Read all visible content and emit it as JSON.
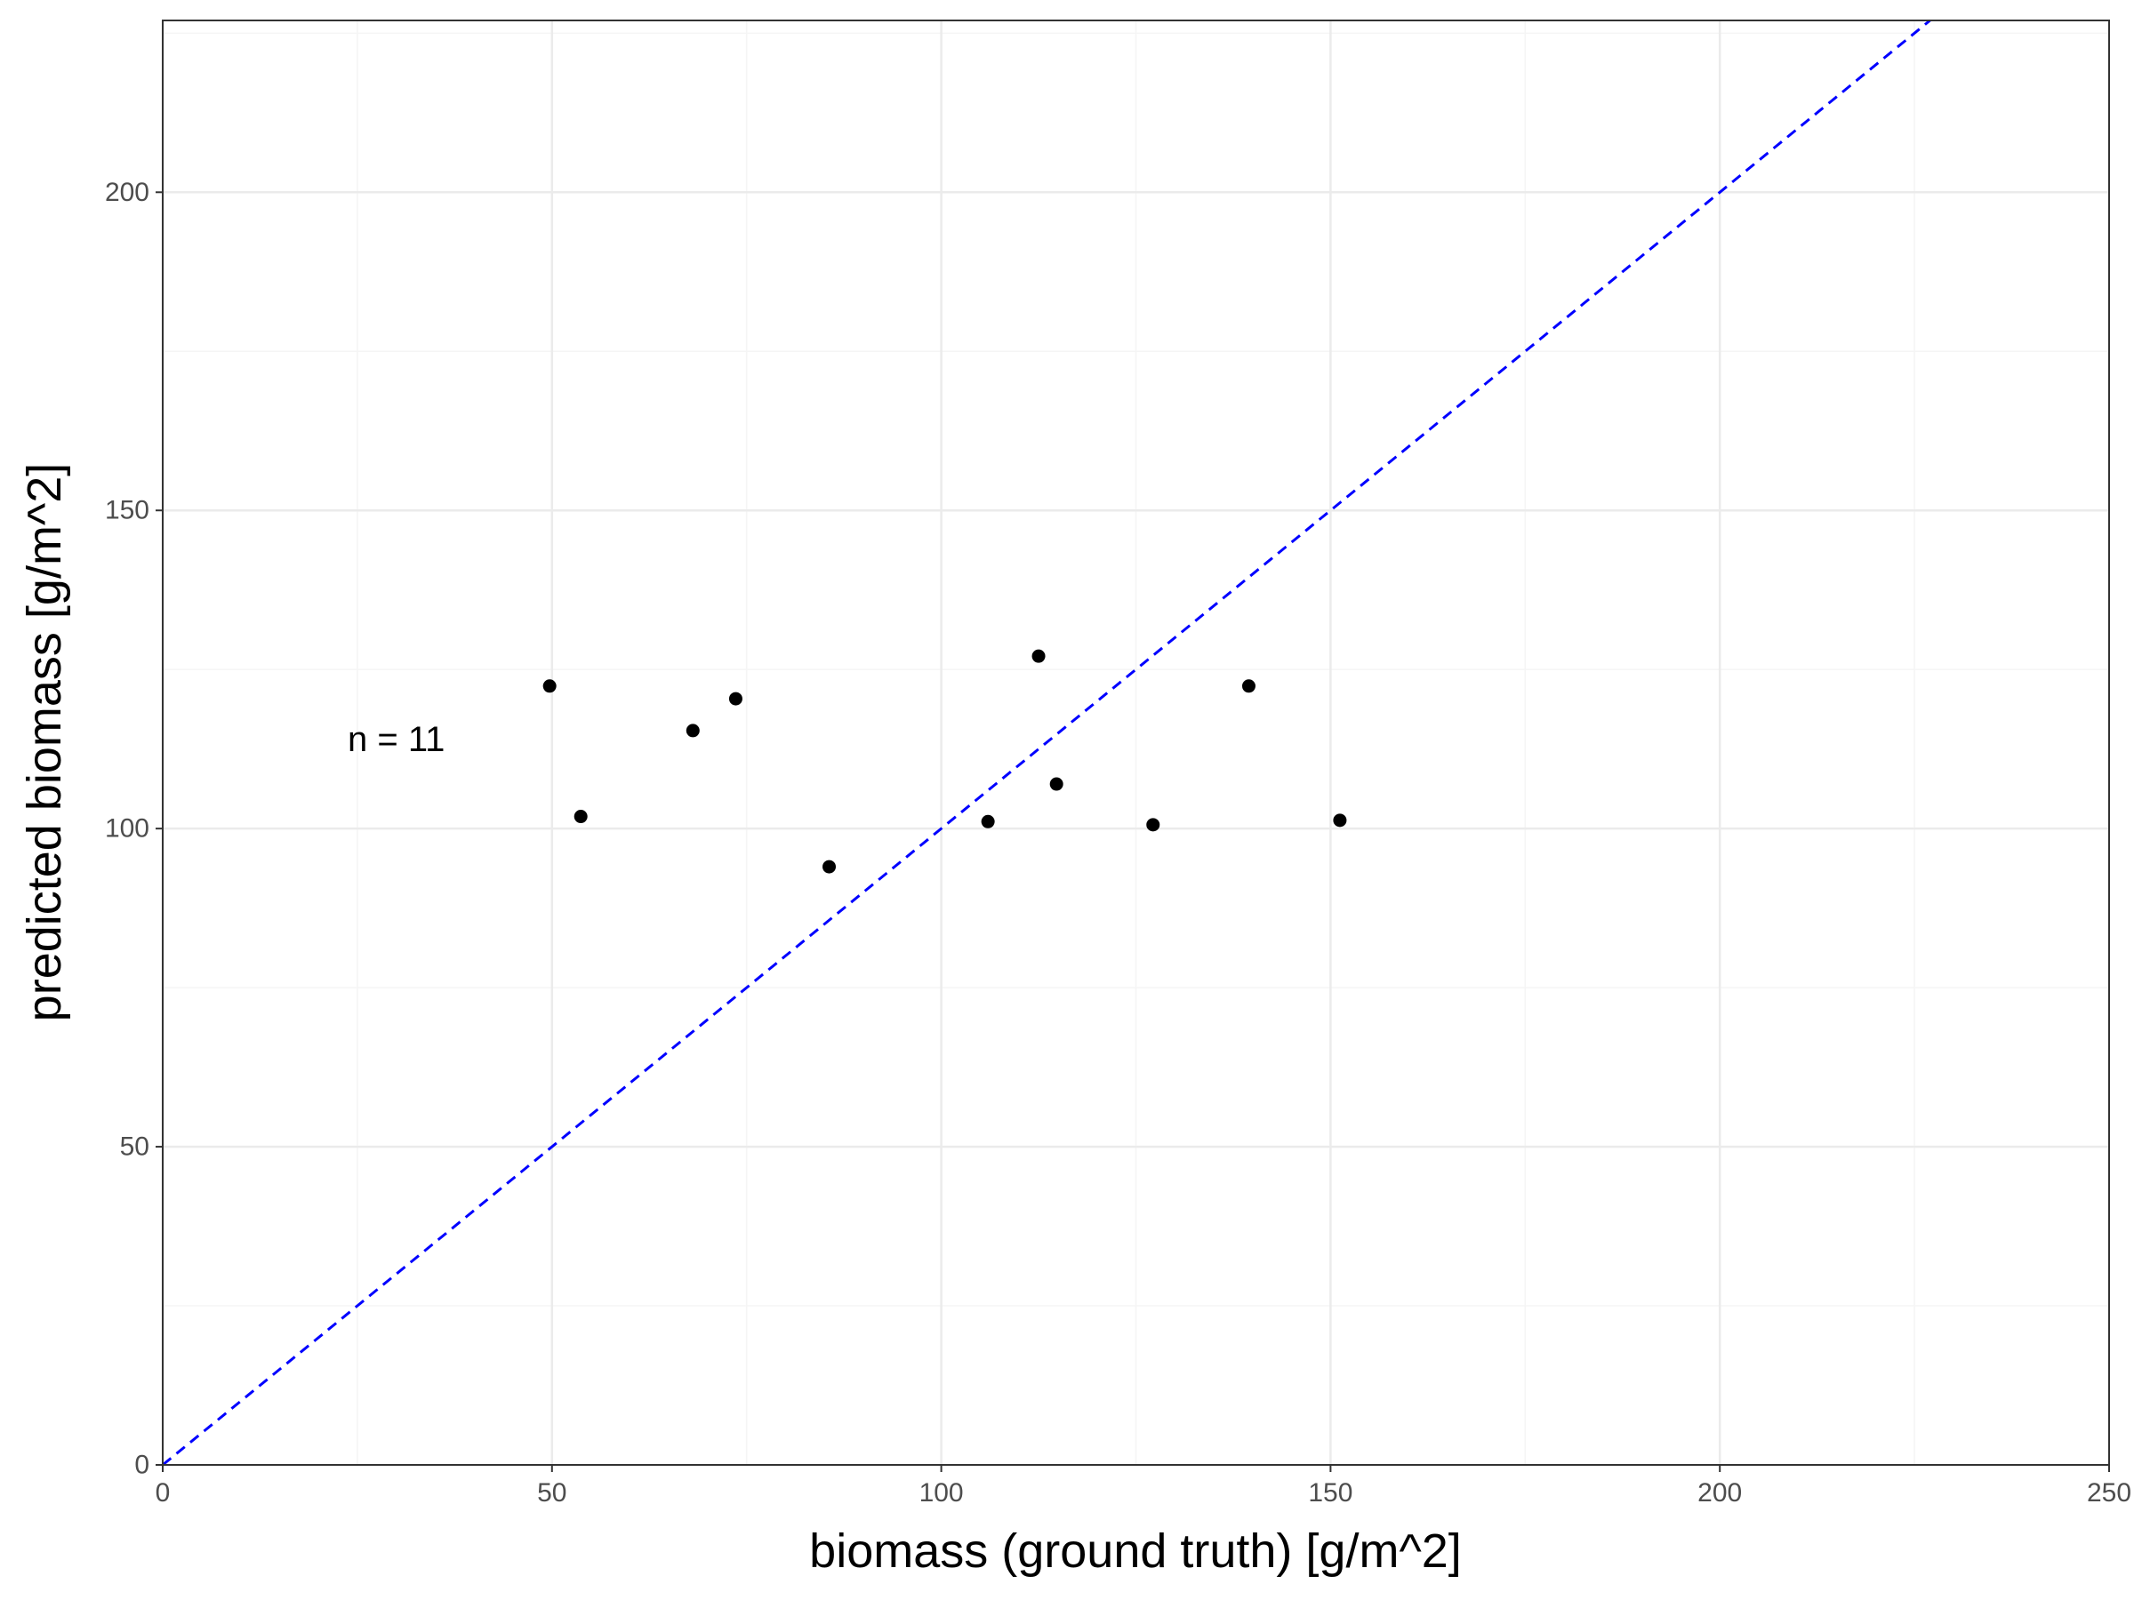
{
  "chart_data": {
    "type": "scatter",
    "title": "",
    "xlabel": "biomass (ground truth) [g/m^2]",
    "ylabel": "predicted biomass [g/m^2]",
    "xlim": [
      0,
      250
    ],
    "ylim": [
      0,
      227
    ],
    "x_ticks": [
      0,
      50,
      100,
      150,
      200,
      250
    ],
    "y_ticks": [
      0,
      50,
      100,
      150,
      200
    ],
    "x_tick_labels": [
      "0",
      "50",
      "100",
      "150",
      "200",
      "250"
    ],
    "y_tick_labels": [
      "0",
      "50",
      "100",
      "150",
      "200"
    ],
    "x_minor_ticks": [
      25,
      75,
      125,
      175,
      225
    ],
    "y_minor_ticks": [
      25,
      75,
      125,
      175,
      225
    ],
    "grid": true,
    "legend": "none",
    "series": [
      {
        "points": [
          {
            "x": 49.7,
            "y": 122.4
          },
          {
            "x": 53.7,
            "y": 101.9
          },
          {
            "x": 68.1,
            "y": 115.4
          },
          {
            "x": 73.6,
            "y": 120.4
          },
          {
            "x": 85.6,
            "y": 94.0
          },
          {
            "x": 106.0,
            "y": 101.1
          },
          {
            "x": 112.5,
            "y": 127.1
          },
          {
            "x": 114.8,
            "y": 107.0
          },
          {
            "x": 127.2,
            "y": 100.6
          },
          {
            "x": 139.5,
            "y": 122.4
          },
          {
            "x": 151.2,
            "y": 101.3
          }
        ]
      }
    ],
    "reference_line": {
      "type": "identity",
      "from": [
        0,
        0
      ],
      "to": [
        227,
        227
      ],
      "style": "dashed"
    },
    "annotations": [
      {
        "text": "n =  11",
        "x": 30,
        "y": 114
      }
    ],
    "colors": {
      "points": "#000000",
      "reference_line": "#0000ff",
      "grid_major": "#ebebeb",
      "grid_minor": "#f5f5f5",
      "panel_border": "#333333",
      "tick_label": "#4d4d4d"
    }
  }
}
